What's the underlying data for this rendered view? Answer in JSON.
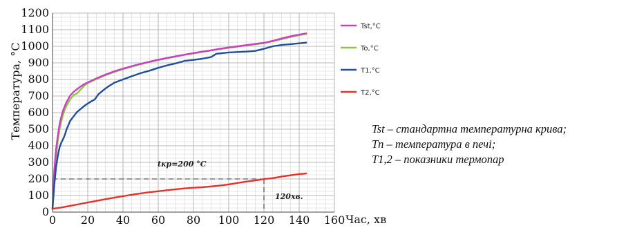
{
  "chart_data": {
    "type": "line",
    "xlabel": "Час, хв",
    "ylabel": "Температура, °С",
    "xlim": [
      0,
      160
    ],
    "ylim": [
      0,
      1200
    ],
    "x_ticks": [
      0,
      20,
      40,
      60,
      80,
      100,
      120,
      140,
      160
    ],
    "y_ticks": [
      0,
      100,
      200,
      300,
      400,
      500,
      600,
      700,
      800,
      900,
      1000,
      1100,
      1200
    ],
    "grid": true,
    "legend_position": "right",
    "series": [
      {
        "name": "Tst,°C",
        "color": "#cc3fc4",
        "points": [
          [
            0,
            20
          ],
          [
            1,
            250
          ],
          [
            2,
            380
          ],
          [
            3,
            460
          ],
          [
            4,
            530
          ],
          [
            5,
            576
          ],
          [
            6,
            612
          ],
          [
            7,
            640
          ],
          [
            8,
            664
          ],
          [
            9,
            684
          ],
          [
            10,
            702
          ],
          [
            12,
            726
          ],
          [
            14,
            742
          ],
          [
            16,
            758
          ],
          [
            18,
            772
          ],
          [
            20,
            782
          ],
          [
            25,
            807
          ],
          [
            30,
            829
          ],
          [
            35,
            849
          ],
          [
            40,
            865
          ],
          [
            45,
            880
          ],
          [
            50,
            894
          ],
          [
            55,
            907
          ],
          [
            60,
            919
          ],
          [
            65,
            930
          ],
          [
            70,
            940
          ],
          [
            75,
            950
          ],
          [
            80,
            959
          ],
          [
            85,
            968
          ],
          [
            90,
            976
          ],
          [
            95,
            985
          ],
          [
            100,
            993
          ],
          [
            105,
            1000
          ],
          [
            110,
            1007
          ],
          [
            115,
            1014
          ],
          [
            120,
            1021
          ],
          [
            125,
            1033
          ],
          [
            130,
            1047
          ],
          [
            135,
            1060
          ],
          [
            140,
            1071
          ],
          [
            144,
            1078
          ]
        ]
      },
      {
        "name": "To,°C",
        "color": "#8dc63f",
        "points": [
          [
            0,
            20
          ],
          [
            1,
            200
          ],
          [
            2,
            330
          ],
          [
            3,
            430
          ],
          [
            4,
            500
          ],
          [
            5,
            548
          ],
          [
            6,
            588
          ],
          [
            7,
            618
          ],
          [
            8,
            642
          ],
          [
            9,
            662
          ],
          [
            10,
            680
          ],
          [
            12,
            706
          ],
          [
            14,
            716
          ],
          [
            16,
            740
          ],
          [
            18,
            762
          ],
          [
            20,
            778
          ],
          [
            25,
            803
          ],
          [
            30,
            825
          ],
          [
            35,
            845
          ],
          [
            40,
            862
          ],
          [
            45,
            878
          ],
          [
            50,
            892
          ],
          [
            55,
            905
          ],
          [
            60,
            917
          ],
          [
            65,
            928
          ],
          [
            70,
            938
          ],
          [
            75,
            948
          ],
          [
            80,
            957
          ],
          [
            85,
            966
          ],
          [
            90,
            974
          ],
          [
            95,
            983
          ],
          [
            100,
            991
          ],
          [
            105,
            998
          ],
          [
            110,
            1005
          ],
          [
            115,
            1012
          ],
          [
            120,
            1019
          ],
          [
            125,
            1030
          ],
          [
            130,
            1043
          ],
          [
            135,
            1056
          ],
          [
            140,
            1067
          ],
          [
            144,
            1074
          ]
        ]
      },
      {
        "name": "T1,°C",
        "color": "#1f4e9c",
        "points": [
          [
            0,
            20
          ],
          [
            1,
            160
          ],
          [
            2,
            270
          ],
          [
            3,
            340
          ],
          [
            4,
            390
          ],
          [
            5,
            420
          ],
          [
            6,
            440
          ],
          [
            7,
            465
          ],
          [
            8,
            500
          ],
          [
            9,
            525
          ],
          [
            10,
            550
          ],
          [
            12,
            578
          ],
          [
            14,
            605
          ],
          [
            16,
            622
          ],
          [
            18,
            640
          ],
          [
            20,
            655
          ],
          [
            22,
            668
          ],
          [
            24,
            680
          ],
          [
            26,
            710
          ],
          [
            28,
            728
          ],
          [
            30,
            745
          ],
          [
            32,
            760
          ],
          [
            35,
            780
          ],
          [
            40,
            800
          ],
          [
            45,
            820
          ],
          [
            50,
            838
          ],
          [
            55,
            853
          ],
          [
            60,
            870
          ],
          [
            65,
            885
          ],
          [
            70,
            897
          ],
          [
            75,
            912
          ],
          [
            80,
            918
          ],
          [
            85,
            925
          ],
          [
            90,
            935
          ],
          [
            93,
            955
          ],
          [
            100,
            963
          ],
          [
            110,
            968
          ],
          [
            115,
            972
          ],
          [
            120,
            985
          ],
          [
            125,
            1000
          ],
          [
            130,
            1008
          ],
          [
            135,
            1013
          ],
          [
            140,
            1018
          ],
          [
            144,
            1022
          ]
        ]
      },
      {
        "name": "T2,°C",
        "color": "#e8302a",
        "points": [
          [
            0,
            20
          ],
          [
            5,
            28
          ],
          [
            10,
            38
          ],
          [
            15,
            48
          ],
          [
            20,
            58
          ],
          [
            25,
            68
          ],
          [
            30,
            78
          ],
          [
            35,
            87
          ],
          [
            40,
            96
          ],
          [
            45,
            105
          ],
          [
            50,
            113
          ],
          [
            55,
            120
          ],
          [
            60,
            126
          ],
          [
            65,
            132
          ],
          [
            70,
            138
          ],
          [
            75,
            143
          ],
          [
            80,
            147
          ],
          [
            85,
            150
          ],
          [
            90,
            155
          ],
          [
            95,
            160
          ],
          [
            100,
            167
          ],
          [
            105,
            176
          ],
          [
            110,
            184
          ],
          [
            115,
            191
          ],
          [
            120,
            199
          ],
          [
            125,
            205
          ],
          [
            130,
            214
          ],
          [
            135,
            222
          ],
          [
            140,
            229
          ],
          [
            144,
            233
          ]
        ]
      }
    ],
    "annotations": {
      "threshold_label": "tкр=200 °C",
      "threshold_value": 200,
      "time_label": "120хв.",
      "time_value": 120
    }
  },
  "notes": [
    "Tst – стандартна температурна крива;",
    "Tп – температура в печі;",
    "T1,2 – показники термопар"
  ]
}
